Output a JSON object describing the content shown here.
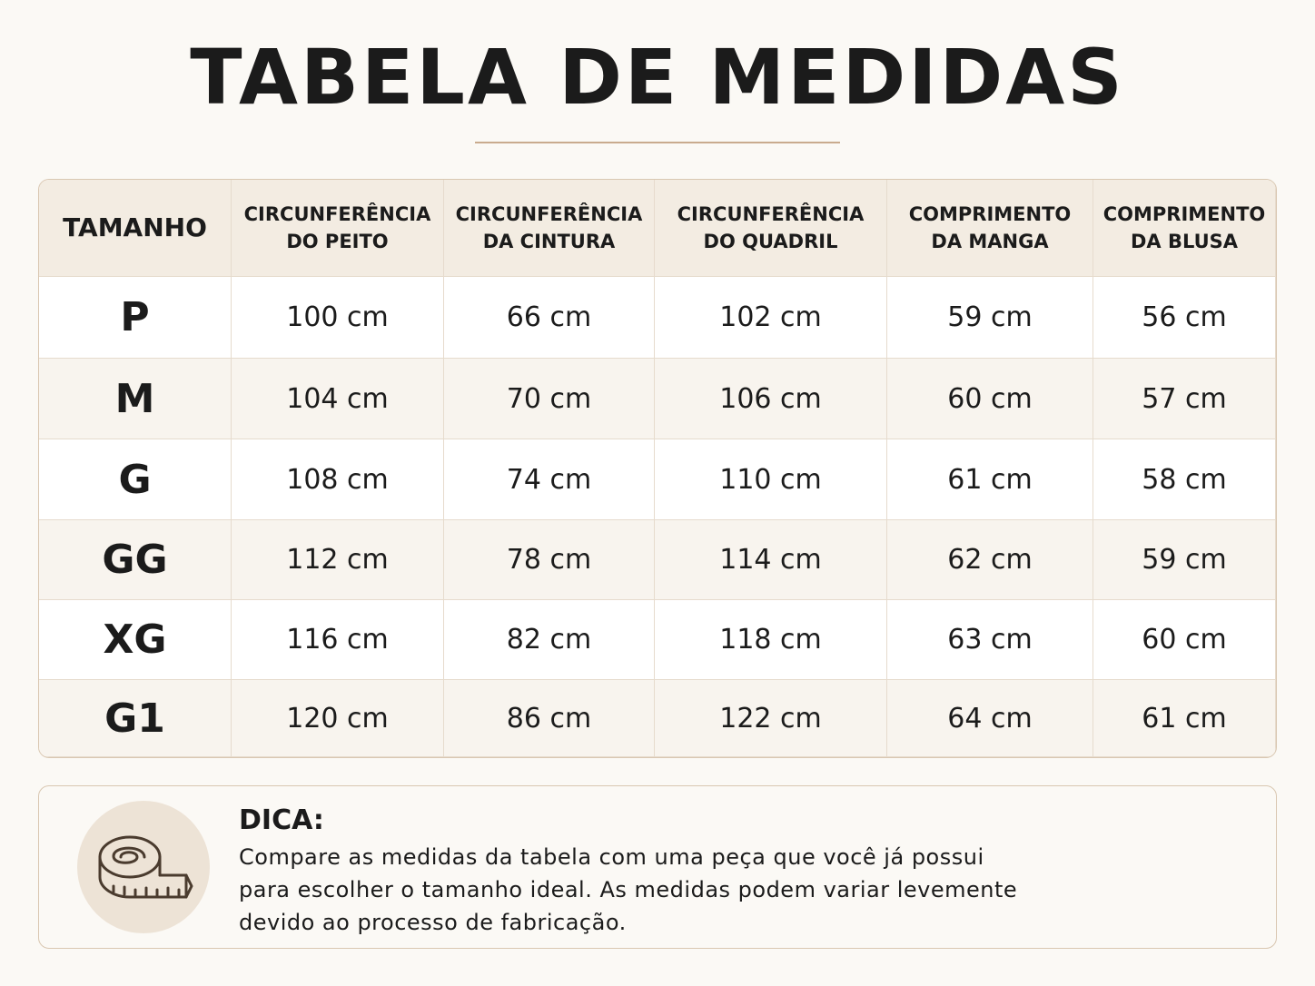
{
  "header": {
    "title": "TABELA DE MEDIDAS"
  },
  "table": {
    "columns": [
      [
        "TAMANHO"
      ],
      [
        "CIRCUNFERÊNCIA",
        "DO PEITO"
      ],
      [
        "CIRCUNFERÊNCIA",
        "DA CINTURA"
      ],
      [
        "CIRCUNFERÊNCIA",
        "DO QUADRIL"
      ],
      [
        "COMPRIMENTO",
        "DA MANGA"
      ],
      [
        "COMPRIMENTO",
        "DA BLUSA"
      ]
    ],
    "rows": [
      [
        "P",
        "100 cm",
        "66 cm",
        "102 cm",
        "59 cm",
        "56 cm"
      ],
      [
        "M",
        "104 cm",
        "70 cm",
        "106 cm",
        "60 cm",
        "57 cm"
      ],
      [
        "G",
        "108 cm",
        "74 cm",
        "110 cm",
        "61 cm",
        "58 cm"
      ],
      [
        "GG",
        "112 cm",
        "78 cm",
        "114 cm",
        "62 cm",
        "59 cm"
      ],
      [
        "XG",
        "116 cm",
        "82 cm",
        "118 cm",
        "63 cm",
        "60 cm"
      ],
      [
        "G1",
        "120 cm",
        "86 cm",
        "122 cm",
        "64 cm",
        "61 cm"
      ]
    ]
  },
  "tip": {
    "label": "DICA:",
    "lines": [
      "Compare as medidas da tabela com uma peça que você já possui",
      "para escolher o tamanho ideal. As medidas podem variar levemente",
      "devido ao processo de fabricação."
    ]
  }
}
